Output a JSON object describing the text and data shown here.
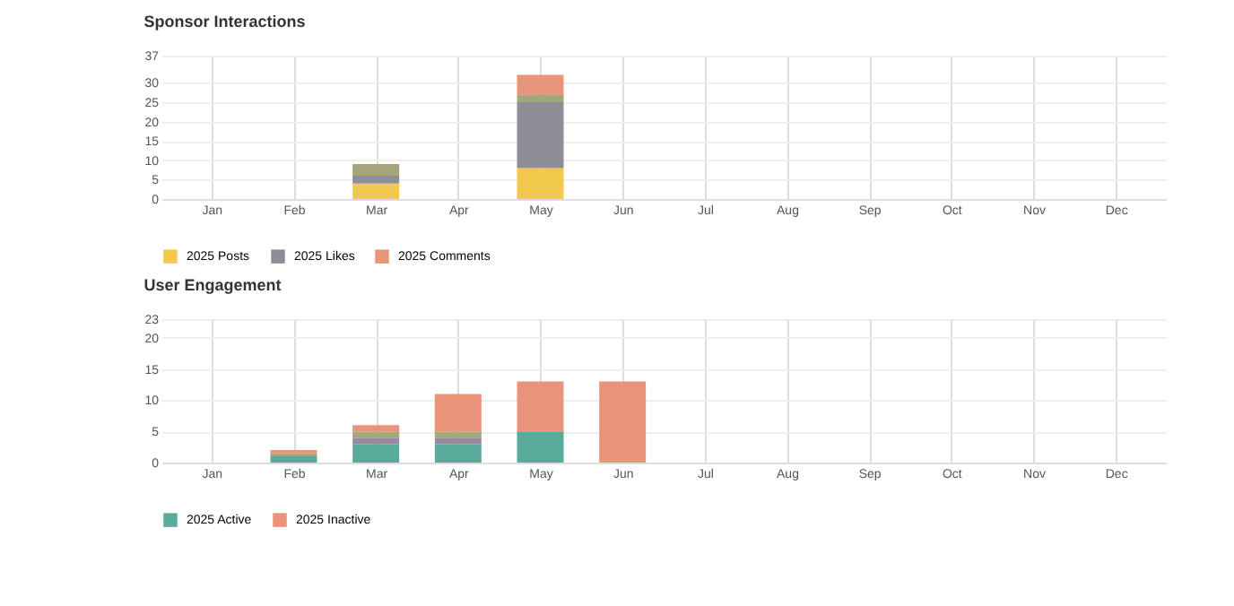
{
  "chart_data": [
    {
      "type": "bar",
      "title": "Sponsor Interactions",
      "stacked": true,
      "categories": [
        "Jan",
        "Feb",
        "Mar",
        "Apr",
        "May",
        "Jun",
        "Jul",
        "Aug",
        "Sep",
        "Oct",
        "Nov",
        "Dec"
      ],
      "ylim": [
        0,
        37
      ],
      "yticks": [
        0,
        5,
        10,
        15,
        20,
        25,
        30,
        37
      ],
      "grid": true,
      "legend": "bottom",
      "series": [
        {
          "name": "2025 Posts",
          "color": "#f2c94c",
          "values": [
            0,
            0,
            4,
            0,
            8,
            0,
            0,
            0,
            0,
            0,
            0,
            0
          ]
        },
        {
          "name": "2025 Likes",
          "color": "#8e8f96",
          "values": [
            0,
            0,
            2,
            0,
            17,
            0,
            0,
            0,
            0,
            0,
            0,
            0
          ]
        },
        {
          "color": "#a4a57a",
          "values": [
            0,
            0,
            3,
            0,
            2,
            0,
            0,
            0,
            0,
            0,
            0,
            0
          ]
        },
        {
          "name": "2025 Comments",
          "color": "#e8957a",
          "values": [
            0,
            0,
            0,
            0,
            5,
            0,
            0,
            0,
            0,
            0,
            0,
            0
          ]
        }
      ]
    },
    {
      "type": "bar",
      "title": "User Engagement",
      "stacked": true,
      "categories": [
        "Jan",
        "Feb",
        "Mar",
        "Apr",
        "May",
        "Jun",
        "Jul",
        "Aug",
        "Sep",
        "Oct",
        "Nov",
        "Dec"
      ],
      "ylim": [
        0,
        23
      ],
      "yticks": [
        0,
        5,
        10,
        15,
        20,
        23
      ],
      "grid": true,
      "legend": "bottom",
      "series": [
        {
          "name": "2025 Active",
          "color": "#5aab9b",
          "values": [
            0,
            1,
            3,
            3,
            5,
            0,
            0,
            0,
            0,
            0,
            0,
            0
          ]
        },
        {
          "color": "#9a8aa0",
          "values": [
            0,
            0,
            1,
            1,
            0,
            0,
            0,
            0,
            0,
            0,
            0,
            0
          ]
        },
        {
          "color": "#a7a878",
          "values": [
            0,
            0.5,
            1,
            1,
            0,
            0,
            0,
            0,
            0,
            0,
            0,
            0
          ]
        },
        {
          "name": "2025 Inactive",
          "color": "#e8937a",
          "values": [
            0,
            0.5,
            1,
            6,
            8,
            13,
            0,
            0,
            0,
            0,
            0,
            0
          ]
        }
      ]
    }
  ]
}
